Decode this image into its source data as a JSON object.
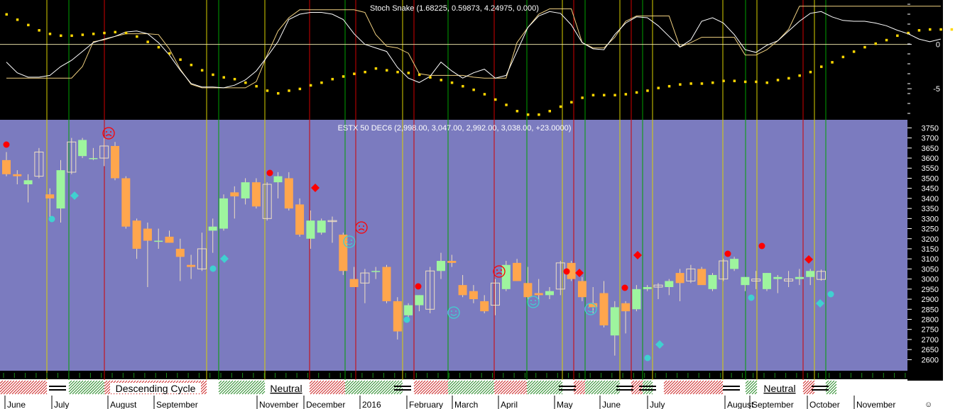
{
  "colors": {
    "top_panel_bg": "#000000",
    "main_panel_bg": "#7b7bbf",
    "axis_bg": "#ffffff",
    "up_candle": "#9ef59e",
    "down_candle": "#ffa64d",
    "wick": "#f0e0c0",
    "stoch_line": "#ffffff",
    "stoch_line2": "#f0d080",
    "snake_dots": "#ffd700",
    "vline_yellow": "#d8d000",
    "vline_green": "#00a000",
    "vline_red": "#d00000",
    "red_marker": "#ff0000",
    "cyan_marker": "#40d0d0",
    "band_red": "#cc2222",
    "band_green": "#228822"
  },
  "chart_data": [
    {
      "type": "line",
      "title": "Stoch Snake (1.68225, 0.59873, 4.24975, 0.000)",
      "y_ticks": [
        "0",
        "-5"
      ],
      "ylim": [
        -8.5,
        5.0
      ],
      "series": [
        {
          "role": "line_a",
          "values": [
            -2.0,
            -3.2,
            -3.7,
            -3.7,
            -3.5,
            -2.5,
            -1.8,
            -0.8,
            0.2,
            0.6,
            0.9,
            1.4,
            1.5,
            1.2,
            0.2,
            -1.2,
            -2.9,
            -4.4,
            -4.8,
            -4.8,
            -4.9,
            -4.6,
            -4.0,
            -3.0,
            -1.4,
            0.3,
            2.8,
            3.4,
            3.6,
            3.6,
            3.4,
            2.8,
            1.2,
            0.0,
            -0.4,
            -0.8,
            -2.6,
            -3.8,
            -4.3,
            -3.6,
            -2.0,
            -3.0,
            -3.8,
            -3.2,
            -2.8,
            -3.8,
            -3.5,
            -0.8,
            1.9,
            3.2,
            3.7,
            3.5,
            2.2,
            0.2,
            -0.5,
            -0.6,
            1.1,
            2.4,
            3.1,
            3.0,
            2.1,
            0.9,
            -0.3,
            0.5,
            2.6,
            3.0,
            2.4,
            1.1,
            -0.6,
            -0.9,
            -0.1,
            0.4,
            1.5,
            2.6,
            3.5,
            3.7,
            3.1,
            2.7,
            2.6,
            2.6,
            2.4,
            2.1,
            1.6,
            1.2,
            0.6,
            0.3,
            0.6
          ]
        },
        {
          "role": "line_b",
          "values": [
            -3.8,
            -3.8,
            -3.8,
            -3.8,
            -3.8,
            -3.8,
            -3.8,
            -2.5,
            0.3,
            0.5,
            0.9,
            1.2,
            1.2,
            1.2,
            1.1,
            -0.5,
            -2.8,
            -4.5,
            -4.9,
            -4.9,
            -4.9,
            -4.9,
            -4.9,
            -4.2,
            -1.2,
            1.5,
            3.0,
            3.9,
            3.9,
            3.9,
            3.9,
            3.9,
            3.9,
            3.6,
            1.1,
            -0.2,
            -0.4,
            -1.0,
            -3.3,
            -3.5,
            -3.5,
            -3.5,
            -3.5,
            -3.7,
            -3.8,
            -3.8,
            -3.8,
            0.2,
            1.9,
            3.4,
            4.0,
            4.0,
            4.0,
            0.2,
            -0.4,
            -0.4,
            0.8,
            2.6,
            3.2,
            3.2,
            3.2,
            3.2,
            -0.3,
            0.2,
            0.8,
            0.8,
            0.8,
            0.8,
            -1.2,
            -1.2,
            -0.6,
            0.4,
            1.7,
            4.3,
            4.3,
            4.3,
            4.3,
            4.3,
            4.3,
            4.3,
            4.3,
            4.3,
            4.3,
            4.3,
            4.3,
            4.3,
            4.3
          ]
        },
        {
          "role": "dots",
          "values": [
            3.4,
            2.8,
            2.2,
            1.6,
            1.2,
            1.0,
            1.0,
            1.1,
            1.2,
            1.3,
            1.4,
            1.3,
            0.9,
            0.3,
            -0.3,
            -1.0,
            -1.7,
            -2.3,
            -2.9,
            -3.4,
            -3.7,
            -3.9,
            -4.3,
            -4.7,
            -5.2,
            -5.5,
            -5.2,
            -5.0,
            -4.6,
            -4.3,
            -3.9,
            -3.6,
            -3.3,
            -3.1,
            -2.7,
            -2.9,
            -3.1,
            -3.2,
            -3.4,
            -3.7,
            -4.0,
            -4.3,
            -4.7,
            -5.1,
            -5.6,
            -6.2,
            -6.8,
            -7.5,
            -7.9,
            -7.9,
            -7.5,
            -7.0,
            -6.5,
            -6.0,
            -5.7,
            -5.7,
            -5.7,
            -5.6,
            -5.4,
            -5.2,
            -4.9,
            -4.7,
            -4.5,
            -4.4,
            -4.4,
            -4.3,
            -4.1,
            -4.1,
            -4.2,
            -4.2,
            -4.3,
            -4.0,
            -3.8,
            -3.5,
            -3.1,
            -2.5,
            -2.0,
            -1.4,
            -0.8,
            -0.3,
            0.1,
            0.5,
            1.0,
            1.3,
            1.6,
            1.7,
            1.7,
            1.7,
            1.7
          ]
        }
      ]
    },
    {
      "type": "candlestick",
      "title": "ESTX 50 DEC6 (2,998.00, 3,047.00, 2,992.00, 3,038.00, +23.0000)",
      "y_ticks": [
        3750,
        3700,
        3650,
        3600,
        3550,
        3500,
        3450,
        3400,
        3350,
        3300,
        3250,
        3200,
        3150,
        3100,
        3050,
        3000,
        2950,
        2900,
        2850,
        2800,
        2750,
        2700,
        2650,
        2600
      ],
      "ylim": [
        2545,
        3790
      ],
      "candles": [
        {
          "o": 3590,
          "h": 3630,
          "l": 3510,
          "c": 3520
        },
        {
          "o": 3520,
          "h": 3540,
          "l": 3470,
          "c": 3510
        },
        {
          "o": 3470,
          "h": 3520,
          "l": 3380,
          "c": 3490
        },
        {
          "o": 3510,
          "h": 3650,
          "l": 3500,
          "c": 3630
        },
        {
          "o": 3420,
          "h": 3450,
          "l": 3300,
          "c": 3400
        },
        {
          "o": 3350,
          "h": 3590,
          "l": 3280,
          "c": 3540
        },
        {
          "o": 3530,
          "h": 3700,
          "l": 3520,
          "c": 3680
        },
        {
          "o": 3610,
          "h": 3700,
          "l": 3600,
          "c": 3690
        },
        {
          "o": 3600,
          "h": 3650,
          "l": 3590,
          "c": 3600
        },
        {
          "o": 3600,
          "h": 3700,
          "l": 3560,
          "c": 3660
        },
        {
          "o": 3660,
          "h": 3680,
          "l": 3490,
          "c": 3500
        },
        {
          "o": 3500,
          "h": 3510,
          "l": 3250,
          "c": 3260
        },
        {
          "o": 3290,
          "h": 3300,
          "l": 3100,
          "c": 3150
        },
        {
          "o": 3250,
          "h": 3280,
          "l": 2960,
          "c": 3190
        },
        {
          "o": 3190,
          "h": 3250,
          "l": 3150,
          "c": 3190
        },
        {
          "o": 3210,
          "h": 3240,
          "l": 3180,
          "c": 3180
        },
        {
          "o": 3150,
          "h": 3200,
          "l": 2990,
          "c": 3110
        },
        {
          "o": 3070,
          "h": 3120,
          "l": 3000,
          "c": 3060
        },
        {
          "o": 3050,
          "h": 3230,
          "l": 3040,
          "c": 3150
        },
        {
          "o": 3240,
          "h": 3300,
          "l": 3130,
          "c": 3260
        },
        {
          "o": 3250,
          "h": 3420,
          "l": 3240,
          "c": 3400
        },
        {
          "o": 3430,
          "h": 3460,
          "l": 3300,
          "c": 3410
        },
        {
          "o": 3400,
          "h": 3500,
          "l": 3370,
          "c": 3480
        },
        {
          "o": 3480,
          "h": 3500,
          "l": 3350,
          "c": 3360
        },
        {
          "o": 3300,
          "h": 3480,
          "l": 3290,
          "c": 3470
        },
        {
          "o": 3480,
          "h": 3530,
          "l": 3400,
          "c": 3510
        },
        {
          "o": 3500,
          "h": 3530,
          "l": 3340,
          "c": 3350
        },
        {
          "o": 3370,
          "h": 3400,
          "l": 3210,
          "c": 3220
        },
        {
          "o": 3200,
          "h": 3340,
          "l": 3150,
          "c": 3290
        },
        {
          "o": 3230,
          "h": 3300,
          "l": 3220,
          "c": 3290
        },
        {
          "o": 3290,
          "h": 3310,
          "l": 3180,
          "c": 3290
        },
        {
          "o": 3220,
          "h": 3230,
          "l": 3020,
          "c": 3040
        },
        {
          "o": 3000,
          "h": 3060,
          "l": 2970,
          "c": 2960
        },
        {
          "o": 2980,
          "h": 3050,
          "l": 2880,
          "c": 3030
        },
        {
          "o": 3040,
          "h": 3060,
          "l": 3000,
          "c": 3040
        },
        {
          "o": 3060,
          "h": 3070,
          "l": 2880,
          "c": 2890
        },
        {
          "o": 2890,
          "h": 2910,
          "l": 2700,
          "c": 2740
        },
        {
          "o": 2820,
          "h": 2880,
          "l": 2810,
          "c": 2870
        },
        {
          "o": 2870,
          "h": 2920,
          "l": 2840,
          "c": 2920
        },
        {
          "o": 2850,
          "h": 3060,
          "l": 2830,
          "c": 3040
        },
        {
          "o": 3040,
          "h": 3130,
          "l": 3000,
          "c": 3090
        },
        {
          "o": 3090,
          "h": 3120,
          "l": 3060,
          "c": 3080
        },
        {
          "o": 2970,
          "h": 3020,
          "l": 2910,
          "c": 2920
        },
        {
          "o": 2940,
          "h": 2970,
          "l": 2880,
          "c": 2900
        },
        {
          "o": 2890,
          "h": 2920,
          "l": 2830,
          "c": 2840
        },
        {
          "o": 2870,
          "h": 3000,
          "l": 2820,
          "c": 2980
        },
        {
          "o": 2950,
          "h": 3090,
          "l": 2940,
          "c": 3070
        },
        {
          "o": 3080,
          "h": 3100,
          "l": 2990,
          "c": 2990
        },
        {
          "o": 2980,
          "h": 3060,
          "l": 2890,
          "c": 2910
        },
        {
          "o": 2930,
          "h": 3000,
          "l": 2890,
          "c": 2920
        },
        {
          "o": 2920,
          "h": 2960,
          "l": 2900,
          "c": 2940
        },
        {
          "o": 2950,
          "h": 3090,
          "l": 2920,
          "c": 3080
        },
        {
          "o": 3080,
          "h": 3090,
          "l": 2990,
          "c": 3000
        },
        {
          "o": 2990,
          "h": 3010,
          "l": 2890,
          "c": 2910
        },
        {
          "o": 2880,
          "h": 2960,
          "l": 2830,
          "c": 2860
        },
        {
          "o": 2930,
          "h": 2990,
          "l": 2760,
          "c": 2770
        },
        {
          "o": 2720,
          "h": 2890,
          "l": 2620,
          "c": 2860
        },
        {
          "o": 2880,
          "h": 2890,
          "l": 2730,
          "c": 2840
        },
        {
          "o": 2850,
          "h": 2970,
          "l": 2840,
          "c": 2950
        },
        {
          "o": 2950,
          "h": 2970,
          "l": 2940,
          "c": 2960
        },
        {
          "o": 2960,
          "h": 2980,
          "l": 2900,
          "c": 2970
        },
        {
          "o": 2960,
          "h": 3000,
          "l": 2920,
          "c": 2990
        },
        {
          "o": 3030,
          "h": 3050,
          "l": 2890,
          "c": 2980
        },
        {
          "o": 2990,
          "h": 3070,
          "l": 2980,
          "c": 3050
        },
        {
          "o": 3050,
          "h": 3060,
          "l": 2980,
          "c": 2970
        },
        {
          "o": 2950,
          "h": 3030,
          "l": 2940,
          "c": 3020
        },
        {
          "o": 3000,
          "h": 3100,
          "l": 2990,
          "c": 3090
        },
        {
          "o": 3050,
          "h": 3110,
          "l": 3040,
          "c": 3100
        },
        {
          "o": 2970,
          "h": 3010,
          "l": 2940,
          "c": 3010
        },
        {
          "o": 2990,
          "h": 3040,
          "l": 2950,
          "c": 3000
        },
        {
          "o": 2950,
          "h": 3030,
          "l": 2940,
          "c": 3030
        },
        {
          "o": 3000,
          "h": 3020,
          "l": 2930,
          "c": 3010
        },
        {
          "o": 2990,
          "h": 3040,
          "l": 2960,
          "c": 3000
        },
        {
          "o": 3000,
          "h": 3050,
          "l": 2970,
          "c": 3010
        },
        {
          "o": 3010,
          "h": 3050,
          "l": 2970,
          "c": 3040
        },
        {
          "o": 2998,
          "h": 3047,
          "l": 2992,
          "c": 3038
        }
      ]
    }
  ],
  "months": [
    "June",
    "July",
    "August",
    "September",
    "November",
    "December",
    "2016",
    "February",
    "March",
    "April",
    "May",
    "June",
    "July",
    "August",
    "September",
    "October",
    "November"
  ],
  "cycle_labels": [
    "Descending Cycle",
    "Neutral",
    "Neutral"
  ]
}
